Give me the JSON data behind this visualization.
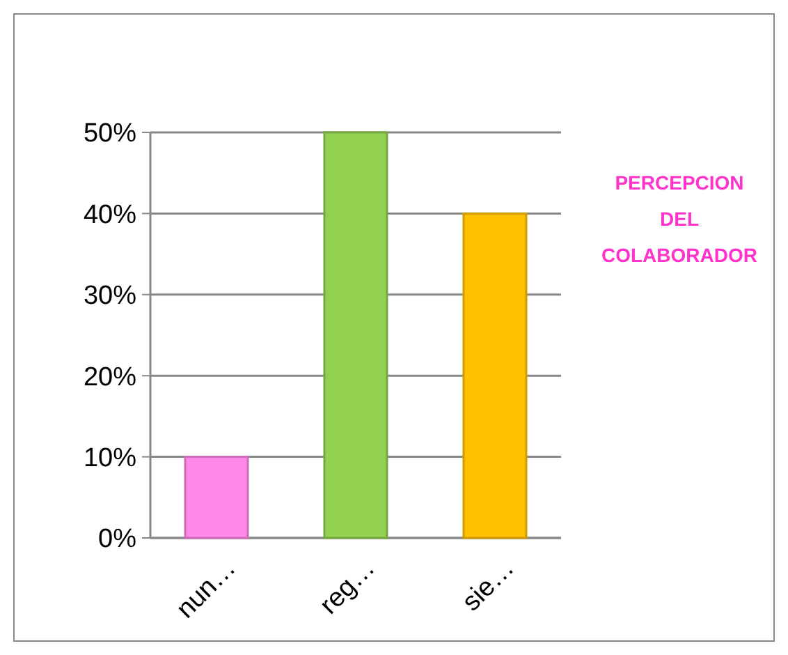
{
  "chart_data": {
    "type": "bar",
    "title": "PERCEPCION DEL COLABORADOR",
    "categories": [
      "nun…",
      "reg…",
      "sie…"
    ],
    "values": [
      10,
      50,
      40
    ],
    "colors": [
      "#ff88e6",
      "#92d050",
      "#ffc000"
    ],
    "ylim": [
      0,
      50
    ],
    "yticks": [
      {
        "value": 0,
        "label": "0%"
      },
      {
        "value": 10,
        "label": "10%"
      },
      {
        "value": 20,
        "label": "20%"
      },
      {
        "value": 30,
        "label": "30%"
      },
      {
        "value": 40,
        "label": "40%"
      },
      {
        "value": 50,
        "label": "50%"
      }
    ],
    "grid": "y"
  }
}
